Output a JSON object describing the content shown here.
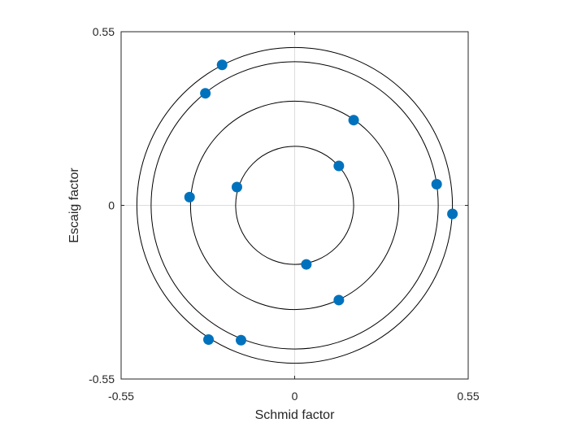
{
  "chart_data": {
    "type": "scatter",
    "title": "",
    "xlabel": "Schmid factor",
    "ylabel": "Escaig factor",
    "xlim": [
      -0.55,
      0.55
    ],
    "ylim": [
      -0.55,
      0.55
    ],
    "x_ticks": [
      -0.55,
      0,
      0.55
    ],
    "y_ticks": [
      -0.55,
      0,
      0.55
    ],
    "x_tick_labels": [
      "-0.55",
      "0",
      "0.55"
    ],
    "y_tick_labels": [
      "-0.55",
      "0",
      "0.55"
    ],
    "grid": "zero-lines",
    "box": true,
    "legend": "none",
    "marker_color": "#0072BD",
    "circles": [
      {
        "radius": 0.187
      },
      {
        "radius": 0.33
      },
      {
        "radius": 0.455
      },
      {
        "radius": 0.5
      }
    ],
    "points": [
      {
        "x": -0.23,
        "y": 0.445
      },
      {
        "x": -0.283,
        "y": 0.355
      },
      {
        "x": 0.187,
        "y": 0.27
      },
      {
        "x": 0.14,
        "y": 0.125
      },
      {
        "x": -0.183,
        "y": 0.058
      },
      {
        "x": -0.333,
        "y": 0.026
      },
      {
        "x": 0.45,
        "y": 0.067
      },
      {
        "x": 0.5,
        "y": -0.027
      },
      {
        "x": 0.037,
        "y": -0.187
      },
      {
        "x": 0.14,
        "y": -0.3
      },
      {
        "x": -0.273,
        "y": -0.425
      },
      {
        "x": -0.17,
        "y": -0.427
      }
    ]
  }
}
